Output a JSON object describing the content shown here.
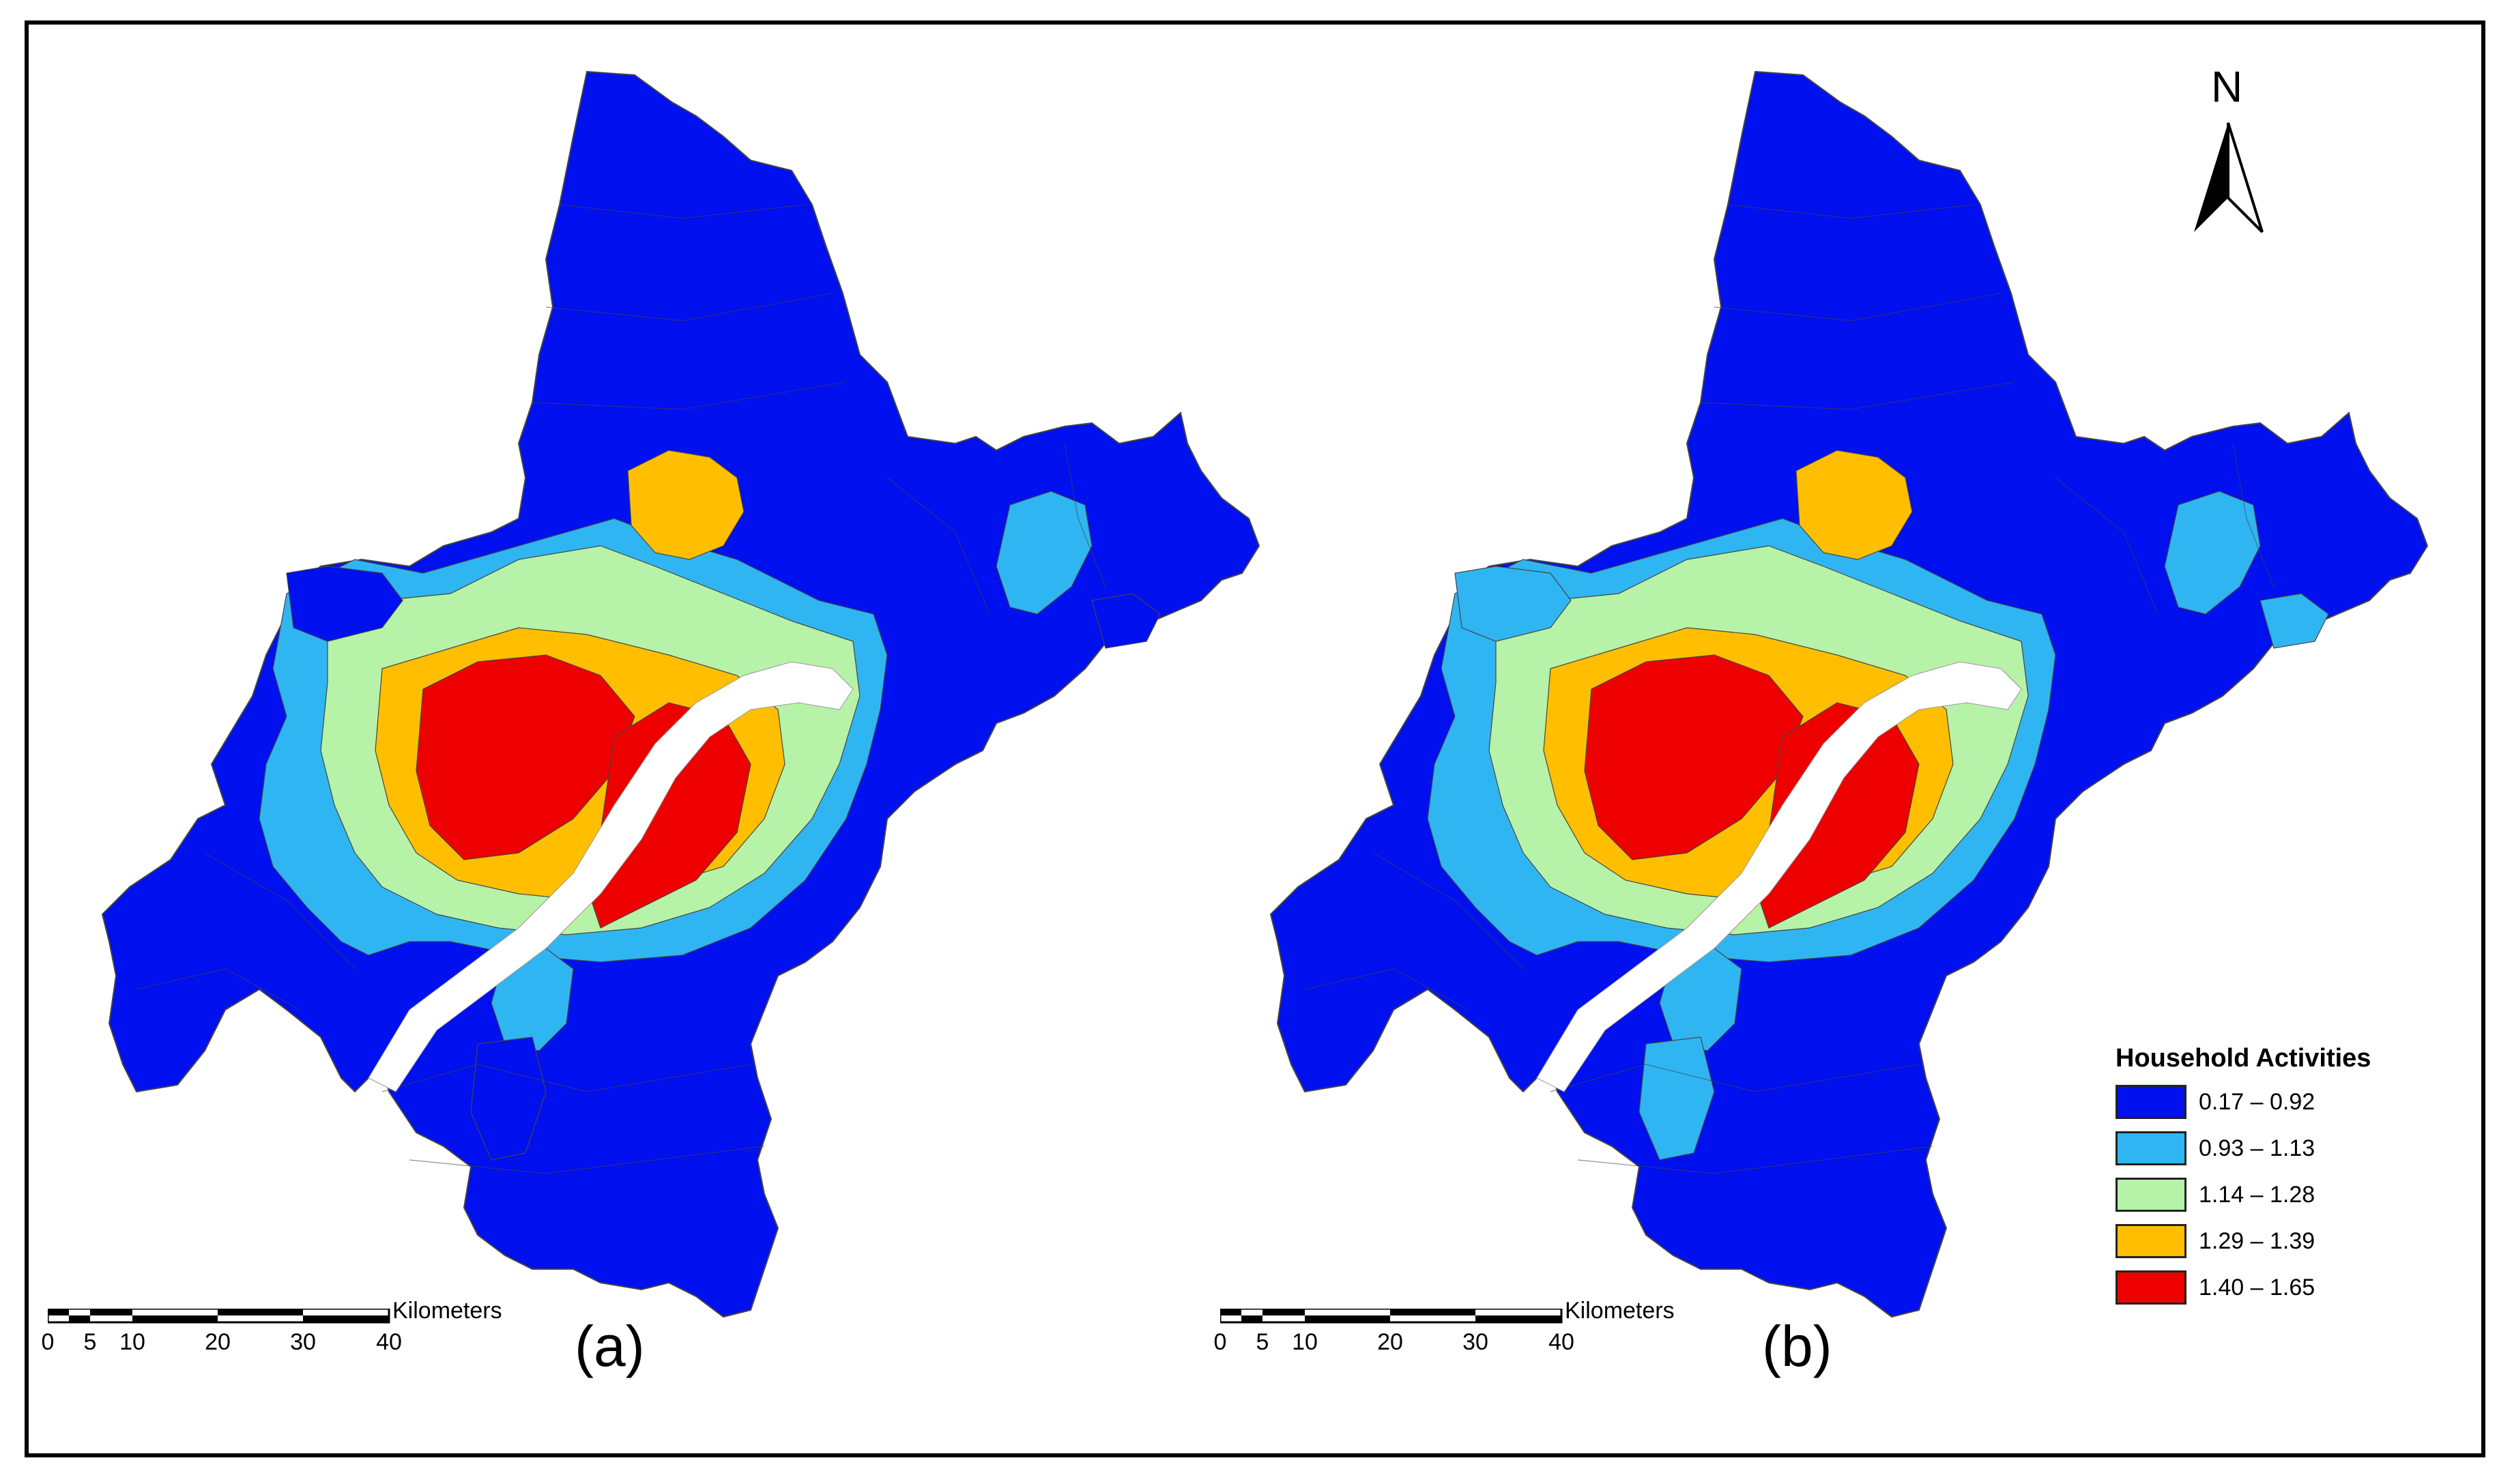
{
  "panels": [
    {
      "id": "a",
      "label": "(a)"
    },
    {
      "id": "b",
      "label": "(b)"
    }
  ],
  "legend": {
    "title": "Household Activities",
    "classes": [
      {
        "label": "0.17 – 0.92",
        "color": "#0010ee"
      },
      {
        "label": "0.93 – 1.13",
        "color": "#2fb6f2"
      },
      {
        "label": "1.14 – 1.28",
        "color": "#b6f2a8"
      },
      {
        "label": "1.29 – 1.39",
        "color": "#ffbf00"
      },
      {
        "label": "1.40 – 1.65",
        "color": "#ee0000"
      }
    ]
  },
  "scale_bar": {
    "unit": "Kilometers",
    "ticks": [
      "0",
      "5",
      "10",
      "20",
      "30",
      "40"
    ]
  },
  "north_arrow": {
    "label": "N"
  },
  "colors": {
    "river": "#ffffff",
    "boundary": "#444444",
    "frame": "#000000"
  }
}
